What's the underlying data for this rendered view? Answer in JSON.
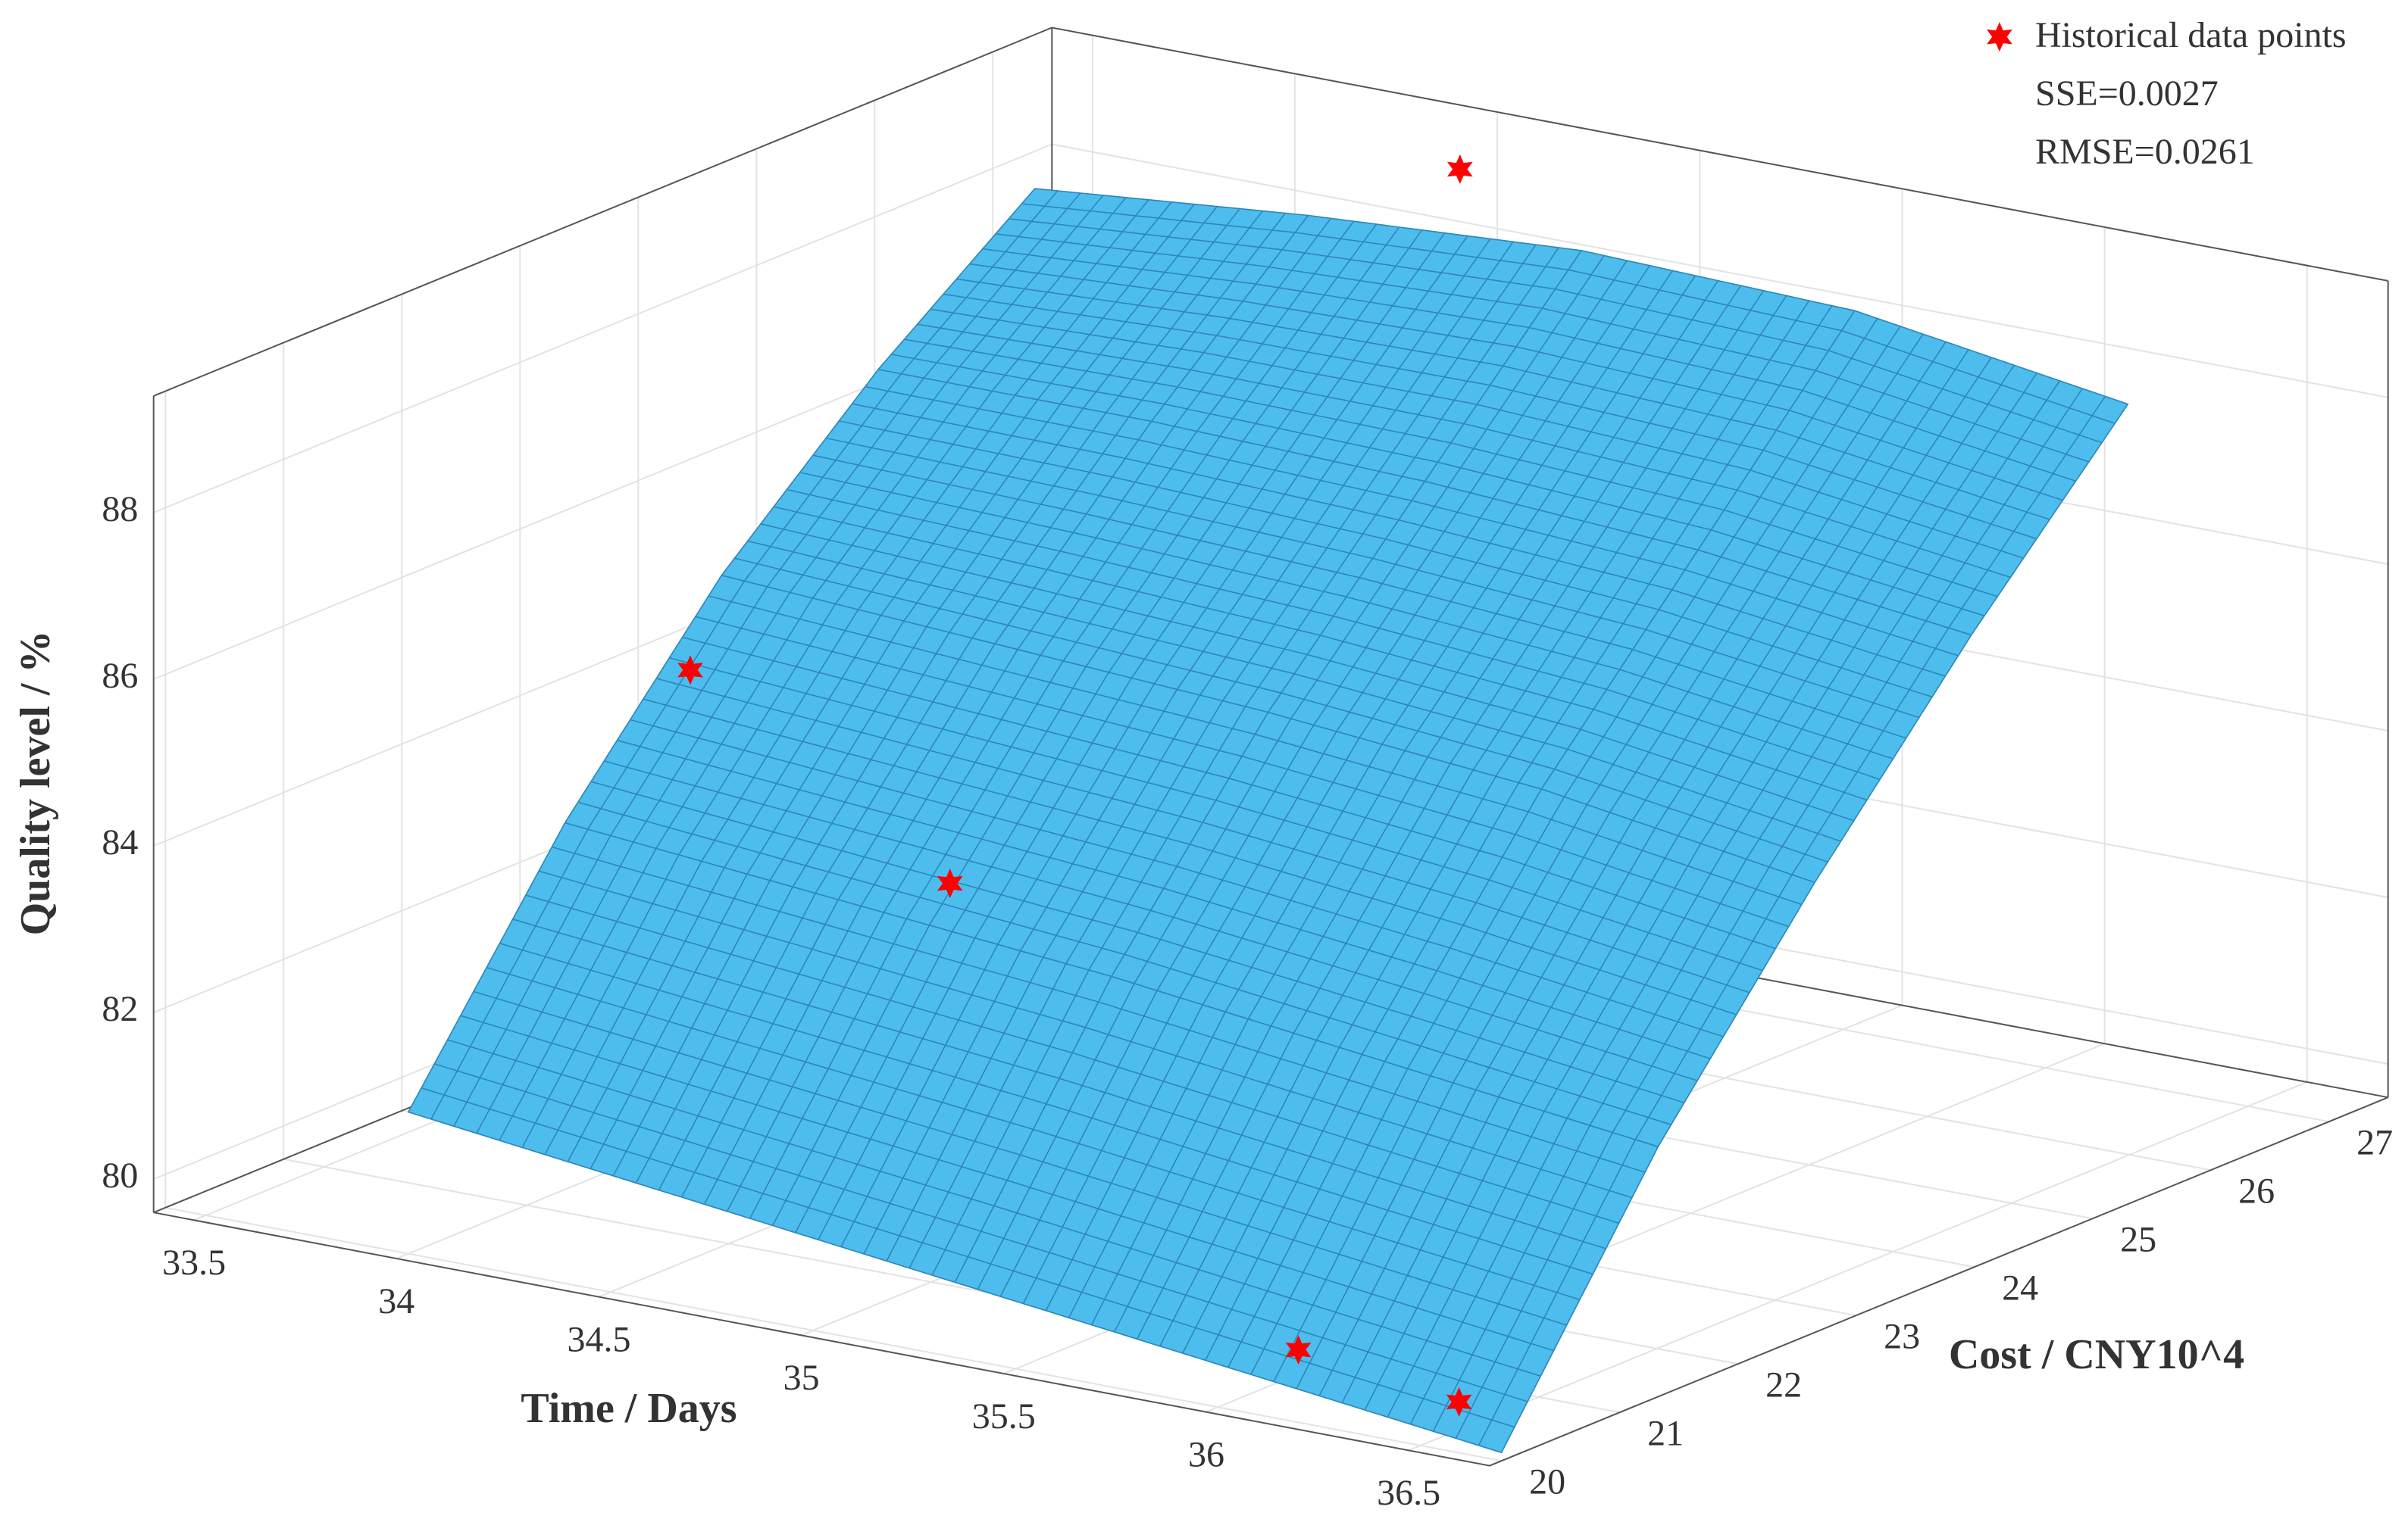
{
  "chart_data": {
    "type": "surface3d",
    "xlabel": "Time / Days",
    "ylabel": "Cost / CNY10^4",
    "zlabel": "Quality level / %",
    "xlim": [
      33.4,
      36.7
    ],
    "ylim": [
      19.9,
      27.5
    ],
    "zlim": [
      79.6,
      89.4
    ],
    "xticks": [
      33.5,
      34,
      34.5,
      35,
      35.5,
      36,
      36.5
    ],
    "yticks": [
      20,
      21,
      22,
      23,
      24,
      25,
      26,
      27
    ],
    "zticks": [
      80,
      82,
      84,
      86,
      88
    ],
    "grid": true,
    "surface": {
      "color": "#4dbdee",
      "x": [
        34,
        34.675,
        35.35,
        36.025,
        36.7
      ],
      "y": [
        20,
        21.325,
        22.65,
        23.975,
        25.3
      ],
      "z": [
        [
          81.3,
          80.9,
          80.5,
          80.1,
          79.7
        ],
        [
          84.0,
          83.7,
          83.4,
          83.0,
          82.6
        ],
        [
          86.2,
          86.0,
          85.8,
          85.5,
          85.0
        ],
        [
          87.9,
          87.9,
          87.8,
          87.6,
          87.2
        ],
        [
          89.3,
          89.6,
          89.8,
          89.7,
          89.2
        ]
      ]
    },
    "series": [
      {
        "name": "Historical data points",
        "color": "#ff0000",
        "x": [
          34.2,
          34.9,
          35.05,
          36.14,
          36.42
        ],
        "y": [
          21.7,
          21.5,
          25.3,
          20.2,
          20.6
        ],
        "z": [
          85.8,
          84.0,
          90.5,
          80.3,
          79.7
        ]
      }
    ],
    "annotations": [
      "SSE=0.0027",
      "RMSE=0.0261"
    ]
  }
}
